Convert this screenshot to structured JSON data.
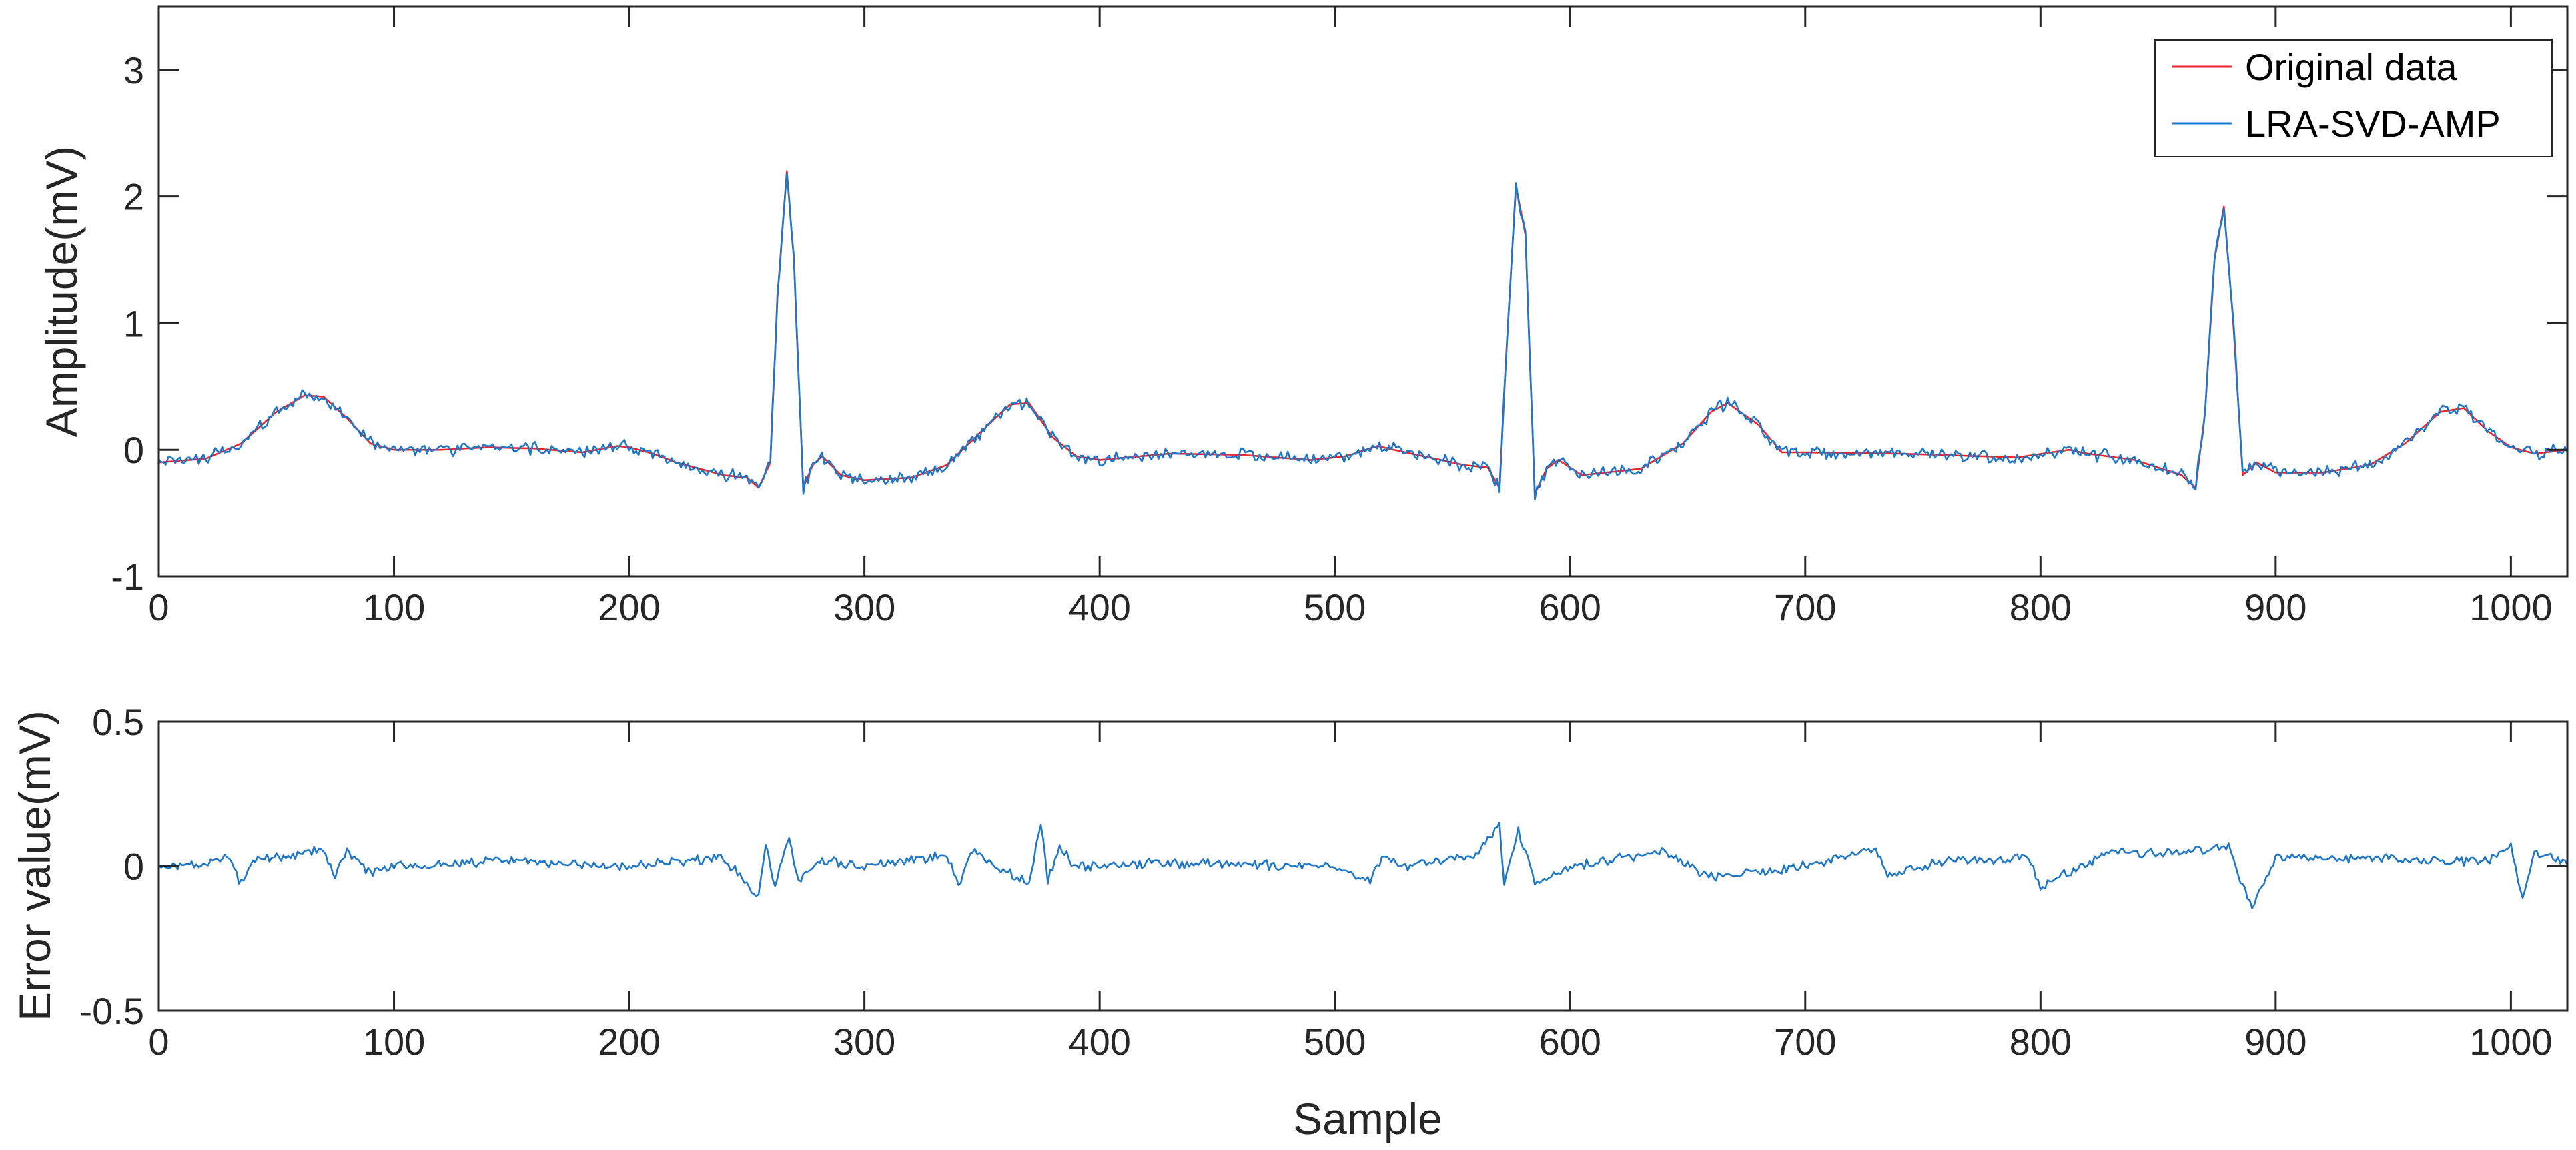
{
  "chart_data": [
    {
      "type": "line",
      "ylabel": "Amplitude(mV)",
      "xlabel": "",
      "xlim": [
        0,
        1024
      ],
      "ylim": [
        -1,
        3.5
      ],
      "xticks": [
        0,
        100,
        200,
        300,
        400,
        500,
        600,
        700,
        800,
        900,
        1000
      ],
      "yticks": [
        -1,
        0,
        1,
        2,
        3
      ],
      "xtick_labels": [
        "0",
        "100",
        "200",
        "300",
        "400",
        "500",
        "600",
        "700",
        "800",
        "900",
        "1000"
      ],
      "ytick_labels": [
        "-1",
        "0",
        "1",
        "2",
        "3"
      ],
      "legend": {
        "position": "top-right",
        "entries": [
          "Original data",
          "LRA-SVD-AMP"
        ]
      },
      "grid": false,
      "series": [
        {
          "name": "Original data",
          "color": "#e8262b",
          "x": [
            0,
            20,
            35,
            50,
            62,
            70,
            80,
            90,
            100,
            120,
            140,
            160,
            180,
            195,
            200,
            210,
            220,
            240,
            250,
            255,
            260,
            263,
            267,
            270,
            274,
            278,
            282,
            290,
            300,
            320,
            335,
            350,
            362,
            370,
            380,
            390,
            400,
            430,
            460,
            490,
            505,
            518,
            530,
            545,
            555,
            565,
            570,
            573,
            577,
            581,
            585,
            590,
            595,
            605,
            630,
            648,
            660,
            667,
            680,
            690,
            700,
            740,
            790,
            812,
            820,
            840,
            860,
            866,
            870,
            874,
            878,
            882,
            886,
            892,
            900,
            920,
            940,
            955,
            970,
            980,
            990,
            1000,
            1010,
            1024
          ],
          "y": [
            -0.1,
            -0.07,
            0.05,
            0.3,
            0.43,
            0.42,
            0.25,
            0.05,
            0,
            0,
            0.02,
            0.01,
            -0.02,
            0.03,
            0.02,
            -0.03,
            -0.1,
            -0.2,
            -0.22,
            -0.3,
            -0.1,
            1.2,
            2.2,
            1.5,
            -0.3,
            -0.12,
            -0.05,
            -0.2,
            -0.24,
            -0.22,
            -0.12,
            0.15,
            0.36,
            0.37,
            0.1,
            -0.05,
            -0.08,
            -0.03,
            -0.04,
            -0.08,
            -0.05,
            0.03,
            -0.02,
            -0.08,
            -0.12,
            -0.14,
            -0.3,
            0.8,
            2.08,
            1.7,
            -0.35,
            -0.15,
            -0.08,
            -0.2,
            -0.15,
            0.05,
            0.3,
            0.37,
            0.2,
            -0.02,
            -0.02,
            -0.03,
            -0.06,
            0,
            -0.03,
            -0.08,
            -0.2,
            -0.3,
            0.3,
            1.5,
            1.92,
            1.0,
            -0.2,
            -0.1,
            -0.18,
            -0.18,
            -0.12,
            0.05,
            0.3,
            0.33,
            0.15,
            0.02,
            -0.03,
            0
          ]
        },
        {
          "name": "LRA-SVD-AMP",
          "color": "#1f77c6",
          "x": [
            0,
            20,
            35,
            50,
            62,
            70,
            80,
            90,
            100,
            120,
            140,
            160,
            180,
            195,
            200,
            210,
            220,
            240,
            250,
            255,
            260,
            263,
            267,
            270,
            274,
            278,
            282,
            290,
            300,
            320,
            335,
            350,
            362,
            370,
            380,
            390,
            400,
            430,
            460,
            490,
            505,
            518,
            530,
            545,
            555,
            565,
            570,
            573,
            577,
            581,
            585,
            590,
            595,
            605,
            630,
            648,
            660,
            667,
            680,
            690,
            700,
            740,
            790,
            812,
            820,
            840,
            860,
            866,
            870,
            874,
            878,
            882,
            886,
            892,
            900,
            920,
            940,
            955,
            970,
            980,
            990,
            1000,
            1010,
            1024
          ],
          "y": [
            -0.1,
            -0.07,
            0.05,
            0.3,
            0.43,
            0.42,
            0.25,
            0.05,
            0,
            0,
            0.02,
            0.01,
            -0.02,
            0.03,
            0.02,
            -0.03,
            -0.1,
            -0.2,
            -0.22,
            -0.3,
            -0.1,
            1.2,
            2.2,
            1.5,
            -0.3,
            -0.12,
            -0.05,
            -0.2,
            -0.24,
            -0.22,
            -0.12,
            0.15,
            0.36,
            0.37,
            0.1,
            -0.05,
            -0.08,
            -0.03,
            -0.04,
            -0.08,
            -0.05,
            0.03,
            -0.02,
            -0.08,
            -0.12,
            -0.14,
            -0.3,
            0.8,
            2.08,
            1.7,
            -0.35,
            -0.15,
            -0.08,
            -0.2,
            -0.15,
            0.05,
            0.3,
            0.37,
            0.2,
            -0.02,
            -0.02,
            -0.03,
            -0.06,
            0,
            -0.03,
            -0.08,
            -0.2,
            -0.3,
            0.3,
            1.5,
            1.92,
            1.0,
            -0.2,
            -0.1,
            -0.18,
            -0.18,
            -0.12,
            0.05,
            0.3,
            0.33,
            0.15,
            0.02,
            -0.03,
            0
          ],
          "noise_amplitude_mV": 0.06
        }
      ]
    },
    {
      "type": "line",
      "ylabel": "Error value(mV)",
      "xlabel": "Sample",
      "xlim": [
        0,
        1024
      ],
      "ylim": [
        -0.5,
        0.5
      ],
      "xticks": [
        0,
        100,
        200,
        300,
        400,
        500,
        600,
        700,
        800,
        900,
        1000
      ],
      "yticks": [
        -0.5,
        0,
        0.5
      ],
      "xtick_labels": [
        "0",
        "100",
        "200",
        "300",
        "400",
        "500",
        "600",
        "700",
        "800",
        "900",
        "1000"
      ],
      "ytick_labels": [
        "-0.5",
        "0",
        "0.5"
      ],
      "grid": false,
      "series": [
        {
          "color": "#1f77c6",
          "x": [
            0,
            20,
            30,
            35,
            40,
            50,
            60,
            70,
            75,
            80,
            90,
            100,
            150,
            200,
            240,
            255,
            258,
            262,
            268,
            272,
            280,
            300,
            335,
            340,
            345,
            370,
            375,
            378,
            383,
            390,
            420,
            500,
            515,
            520,
            530,
            560,
            570,
            572,
            578,
            585,
            600,
            640,
            660,
            700,
            730,
            735,
            760,
            795,
            800,
            830,
            850,
            880,
            885,
            890,
            900,
            990,
            1000,
            1005,
            1010,
            1024
          ],
          "y": [
            0,
            0.01,
            0.03,
            -0.06,
            0.02,
            0.03,
            0.04,
            0.06,
            -0.03,
            0.05,
            -0.02,
            0,
            0.02,
            0,
            0.03,
            -0.1,
            0.07,
            -0.06,
            0.1,
            -0.05,
            0.02,
            0,
            0.04,
            -0.07,
            0.05,
            -0.06,
            0.15,
            -0.05,
            0.06,
            0,
            0.01,
            0,
            -0.05,
            0.03,
            0,
            0.04,
            0.15,
            -0.05,
            0.12,
            -0.06,
            0,
            0.05,
            -0.04,
            0,
            0.06,
            -0.03,
            0.02,
            0.03,
            -0.07,
            0.05,
            0.04,
            0.07,
            -0.05,
            -0.14,
            0.03,
            0.02,
            0.07,
            -0.11,
            0.05,
            0.01
          ],
          "noise_amplitude_mV": 0.02
        }
      ]
    }
  ]
}
